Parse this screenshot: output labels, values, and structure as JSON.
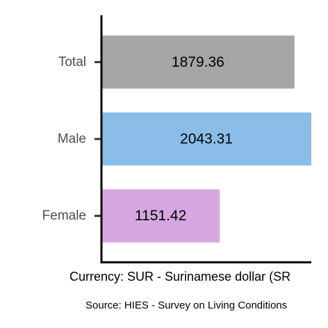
{
  "chart_data": {
    "type": "bar",
    "orientation": "horizontal",
    "categories": [
      "Total",
      "Male",
      "Female"
    ],
    "values": [
      1879.36,
      2043.31,
      1151.42
    ],
    "data_labels": [
      "1879.36",
      "2043.31",
      "1151.42"
    ],
    "colors": [
      "#a6a6a6",
      "#8abde8",
      "#d5a6e0"
    ],
    "xlim": [
      0,
      2043.31
    ],
    "grid": false,
    "legend": "none"
  },
  "caption": "Currency: SUR - Surinamese dollar (SR",
  "source": "Source:  HIES - Survey on Living Conditions"
}
